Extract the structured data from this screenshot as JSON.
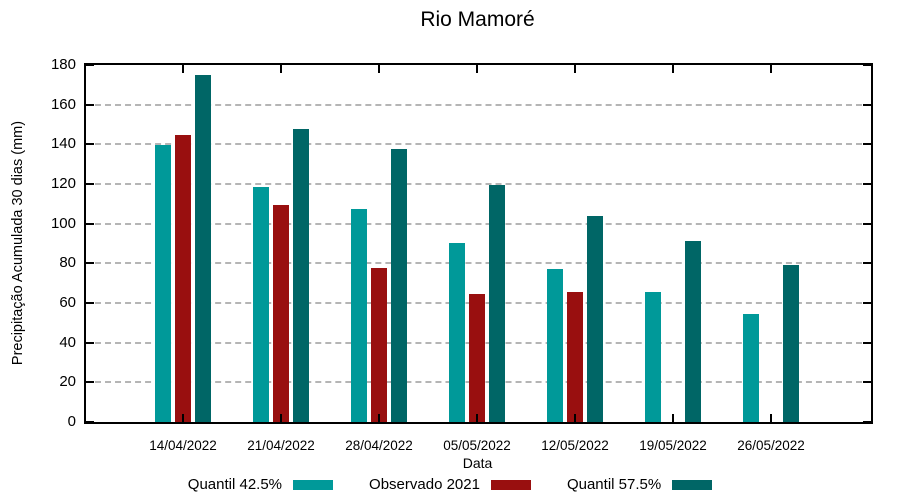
{
  "chart_data": {
    "type": "bar",
    "title": "Rio Mamoré",
    "xlabel": "Data",
    "ylabel": "Precipitação Acumulada 30 dias (mm)",
    "ylim": [
      0,
      180
    ],
    "ytick_step": 20,
    "grid": true,
    "legend_position": "bottom",
    "categories": [
      "14/04/2022",
      "21/04/2022",
      "28/04/2022",
      "05/05/2022",
      "12/05/2022",
      "19/05/2022",
      "26/05/2022"
    ],
    "series": [
      {
        "name": "Quantil 42.5%",
        "color": "#009999",
        "values": [
          139.5,
          118.5,
          107.5,
          90.5,
          77,
          65.5,
          54.5
        ]
      },
      {
        "name": "Observado 2021",
        "color": "#990f0f",
        "values": [
          144.5,
          109.5,
          77.5,
          64.5,
          65.5,
          null,
          null
        ]
      },
      {
        "name": "Quantil 57.5%",
        "color": "#006666",
        "values": [
          175,
          147.5,
          137.5,
          119.5,
          104,
          91.5,
          79
        ]
      }
    ],
    "colors": {
      "axis": "#000000",
      "gridline": "#b5b5b5",
      "background": "#ffffff"
    }
  }
}
